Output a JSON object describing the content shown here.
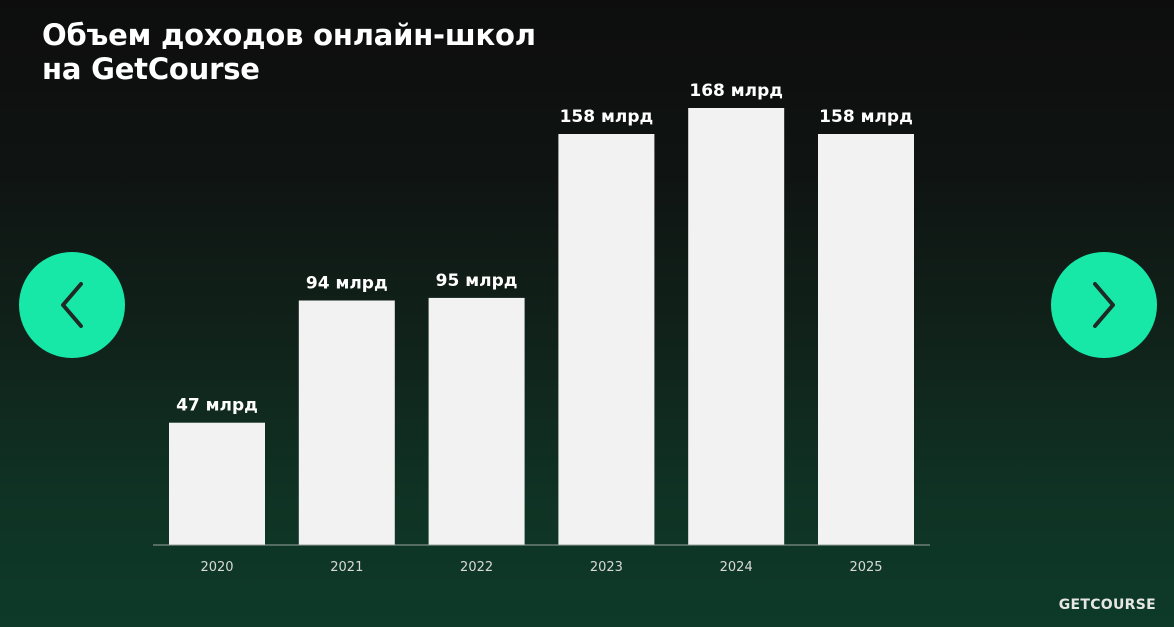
{
  "chart_data": {
    "type": "bar",
    "title": [
      "Объем доходов онлайн-школ",
      "на GetCourse"
    ],
    "categories": [
      "2020",
      "2021",
      "2022",
      "2023",
      "2024",
      "2025"
    ],
    "values": [
      47,
      94,
      95,
      158,
      168,
      158
    ],
    "data_labels": [
      "47 млрд",
      "94 млрд",
      "95 млрд",
      "158 млрд",
      "168 млрд",
      "158 млрд"
    ],
    "xlabel": "",
    "ylabel": "",
    "ylim": [
      0,
      168
    ],
    "grid": false,
    "bar_color": "#f2f2f2"
  },
  "navigation": {
    "prev_icon": "chevron-left-icon",
    "next_icon": "chevron-right-icon",
    "color": "#17e8a8"
  },
  "brand": {
    "logo_text": "GETCOURSE"
  }
}
